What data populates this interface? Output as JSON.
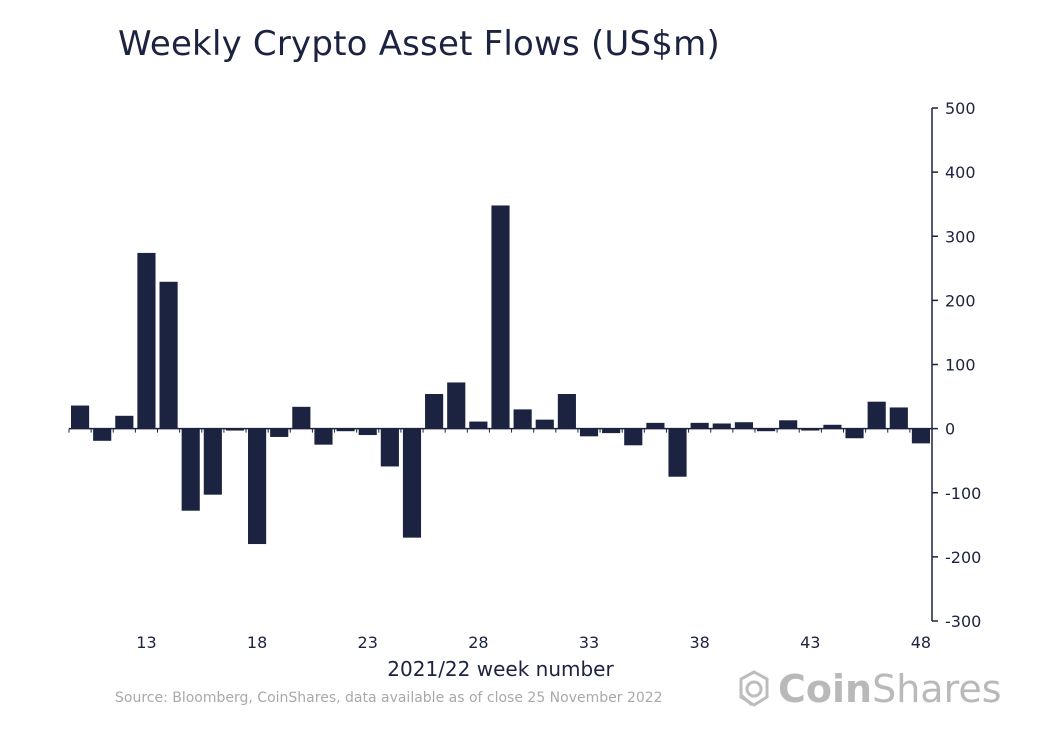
{
  "header": {
    "title": "Weekly Crypto Asset Flows (US$m)"
  },
  "footer": {
    "source": "Source: Bloomberg, CoinShares, data available as of close 25 November 2022",
    "logo_bold": "Coin",
    "logo_light": "Shares"
  },
  "colors": {
    "bar": "#1b2340",
    "axis": "#1b2340",
    "text": "#1b2340",
    "muted": "#a9a9a9"
  },
  "chart_data": {
    "type": "bar",
    "title": "Weekly Crypto Asset Flows (US$m)",
    "xlabel": "2021/22 week number",
    "ylabel": "",
    "ylim": [
      -300,
      500
    ],
    "yticks": [
      500,
      400,
      300,
      200,
      100,
      0,
      -100,
      -200,
      -300
    ],
    "xticks": [
      13,
      18,
      23,
      28,
      33,
      38,
      43,
      48
    ],
    "y_axis_position": "right",
    "grid": false,
    "categories": [
      10,
      11,
      12,
      13,
      14,
      15,
      16,
      17,
      18,
      19,
      20,
      21,
      22,
      23,
      24,
      25,
      26,
      27,
      28,
      29,
      30,
      31,
      32,
      33,
      34,
      35,
      36,
      37,
      38,
      39,
      40,
      41,
      42,
      43,
      44,
      45,
      46,
      47,
      48
    ],
    "values": [
      36,
      -19,
      20,
      274,
      229,
      -128,
      -103,
      -3,
      -180,
      -13,
      34,
      -25,
      -4,
      -10,
      -59,
      -170,
      54,
      72,
      11,
      348,
      30,
      14,
      54,
      -12,
      -7,
      -26,
      9,
      -75,
      9,
      8,
      10,
      -4,
      13,
      -3,
      6,
      -15,
      42,
      33,
      -23
    ]
  }
}
